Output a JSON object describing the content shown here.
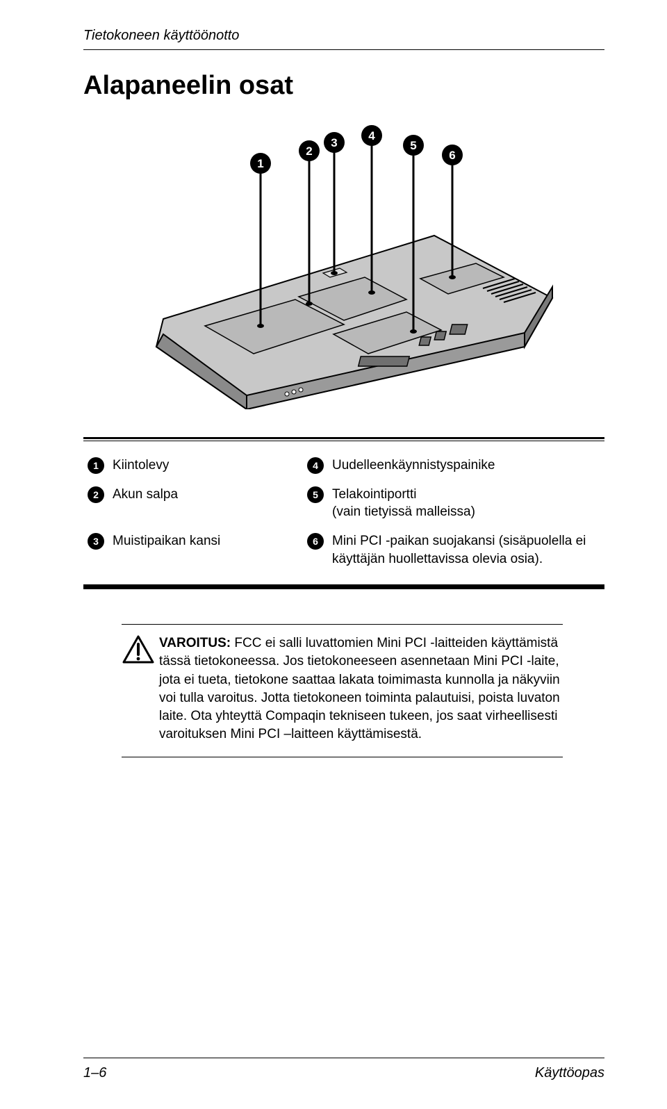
{
  "header": {
    "chapter": "Tietokoneen käyttöönotto"
  },
  "section": {
    "title": "Alapaneelin osat"
  },
  "diagram": {
    "callouts": [
      "1",
      "2",
      "3",
      "4",
      "5",
      "6"
    ],
    "body_fill": "#c8c8c8",
    "body_stroke": "#000000",
    "panel_fill": "#b9b9b9"
  },
  "parts": {
    "rows": [
      {
        "ln": "1",
        "ld": "Kiintolevy",
        "rn": "4",
        "rd": "Uudelleenkäynnistyspainike"
      },
      {
        "ln": "2",
        "ld": "Akun salpa",
        "rn": "5",
        "rd": "Telakointiportti\n(vain tietyissä malleissa)"
      },
      {
        "ln": "3",
        "ld": "Muistipaikan kansi",
        "rn": "6",
        "rd": "Mini PCI -paikan suojakansi (sisäpuolella ei käyttäjän huollettavissa olevia osia)."
      }
    ]
  },
  "warning": {
    "label": "VAROITUS:",
    "text_after_label": " FCC ei salli luvattomien Mini PCI -laitteiden käyttämistä tässä tietokoneessa. Jos tietokoneeseen asennetaan Mini PCI -laite, jota ei tueta, tietokone saattaa lakata toimimasta kunnolla ja näkyviin voi tulla varoitus. Jotta tietokoneen toiminta palautuisi, poista luvaton laite. Ota yhteyttä Compaqin tekniseen tukeen, jos saat virheellisesti varoituksen Mini PCI –laitteen käyttämisestä."
  },
  "footer": {
    "left": "1–6",
    "right": "Käyttöopas"
  }
}
